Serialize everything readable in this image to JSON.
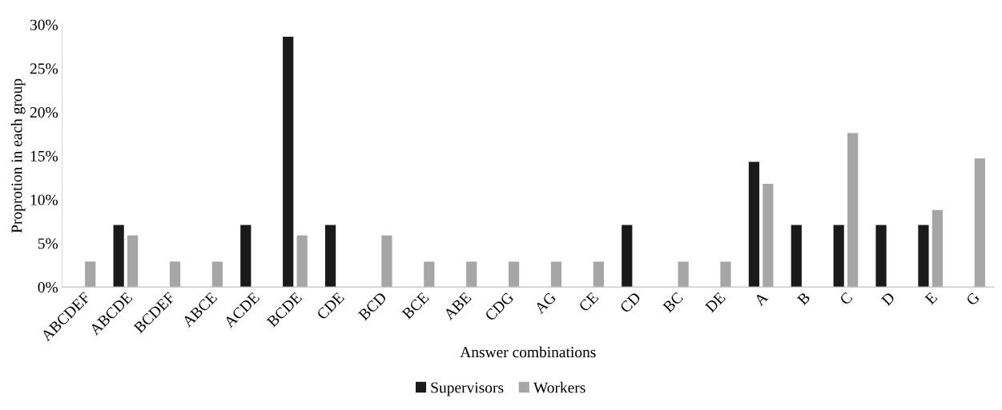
{
  "chart_data": {
    "type": "bar",
    "xlabel": "Answer combinations",
    "ylabel": "Proprotion in each group",
    "categories": [
      "ABCDEF",
      "ABCDE",
      "BCDEF",
      "ABCE",
      "ACDE",
      "BCDE",
      "CDE",
      "BCD",
      "BCE",
      "ABE",
      "CDG",
      "AG",
      "CE",
      "CD",
      "BC",
      "DE",
      "A",
      "B",
      "C",
      "D",
      "E",
      "G"
    ],
    "series": [
      {
        "name": "Supervisors",
        "color": "#1a1a1a",
        "values": [
          0,
          7.1,
          0,
          0,
          7.1,
          28.6,
          7.1,
          0,
          0,
          0,
          0,
          0,
          0,
          7.1,
          0,
          0,
          14.3,
          7.1,
          7.1,
          7.1,
          7.1,
          0
        ]
      },
      {
        "name": "Workers",
        "color": "#a6a6a6",
        "values": [
          2.9,
          5.9,
          2.9,
          2.9,
          0,
          5.9,
          0,
          5.9,
          2.9,
          2.9,
          2.9,
          2.9,
          2.9,
          0,
          2.9,
          2.9,
          11.8,
          0,
          17.6,
          0,
          8.8,
          14.7
        ]
      }
    ],
    "ylim": [
      0,
      30
    ],
    "yticks": [
      {
        "value": 0,
        "label": "0%"
      },
      {
        "value": 5,
        "label": "5%"
      },
      {
        "value": 10,
        "label": "10%"
      },
      {
        "value": 15,
        "label": "15%"
      },
      {
        "value": 20,
        "label": "20%"
      },
      {
        "value": 25,
        "label": "25%"
      },
      {
        "value": 30,
        "label": "30%"
      }
    ],
    "grid": false,
    "legend": "bottom"
  }
}
